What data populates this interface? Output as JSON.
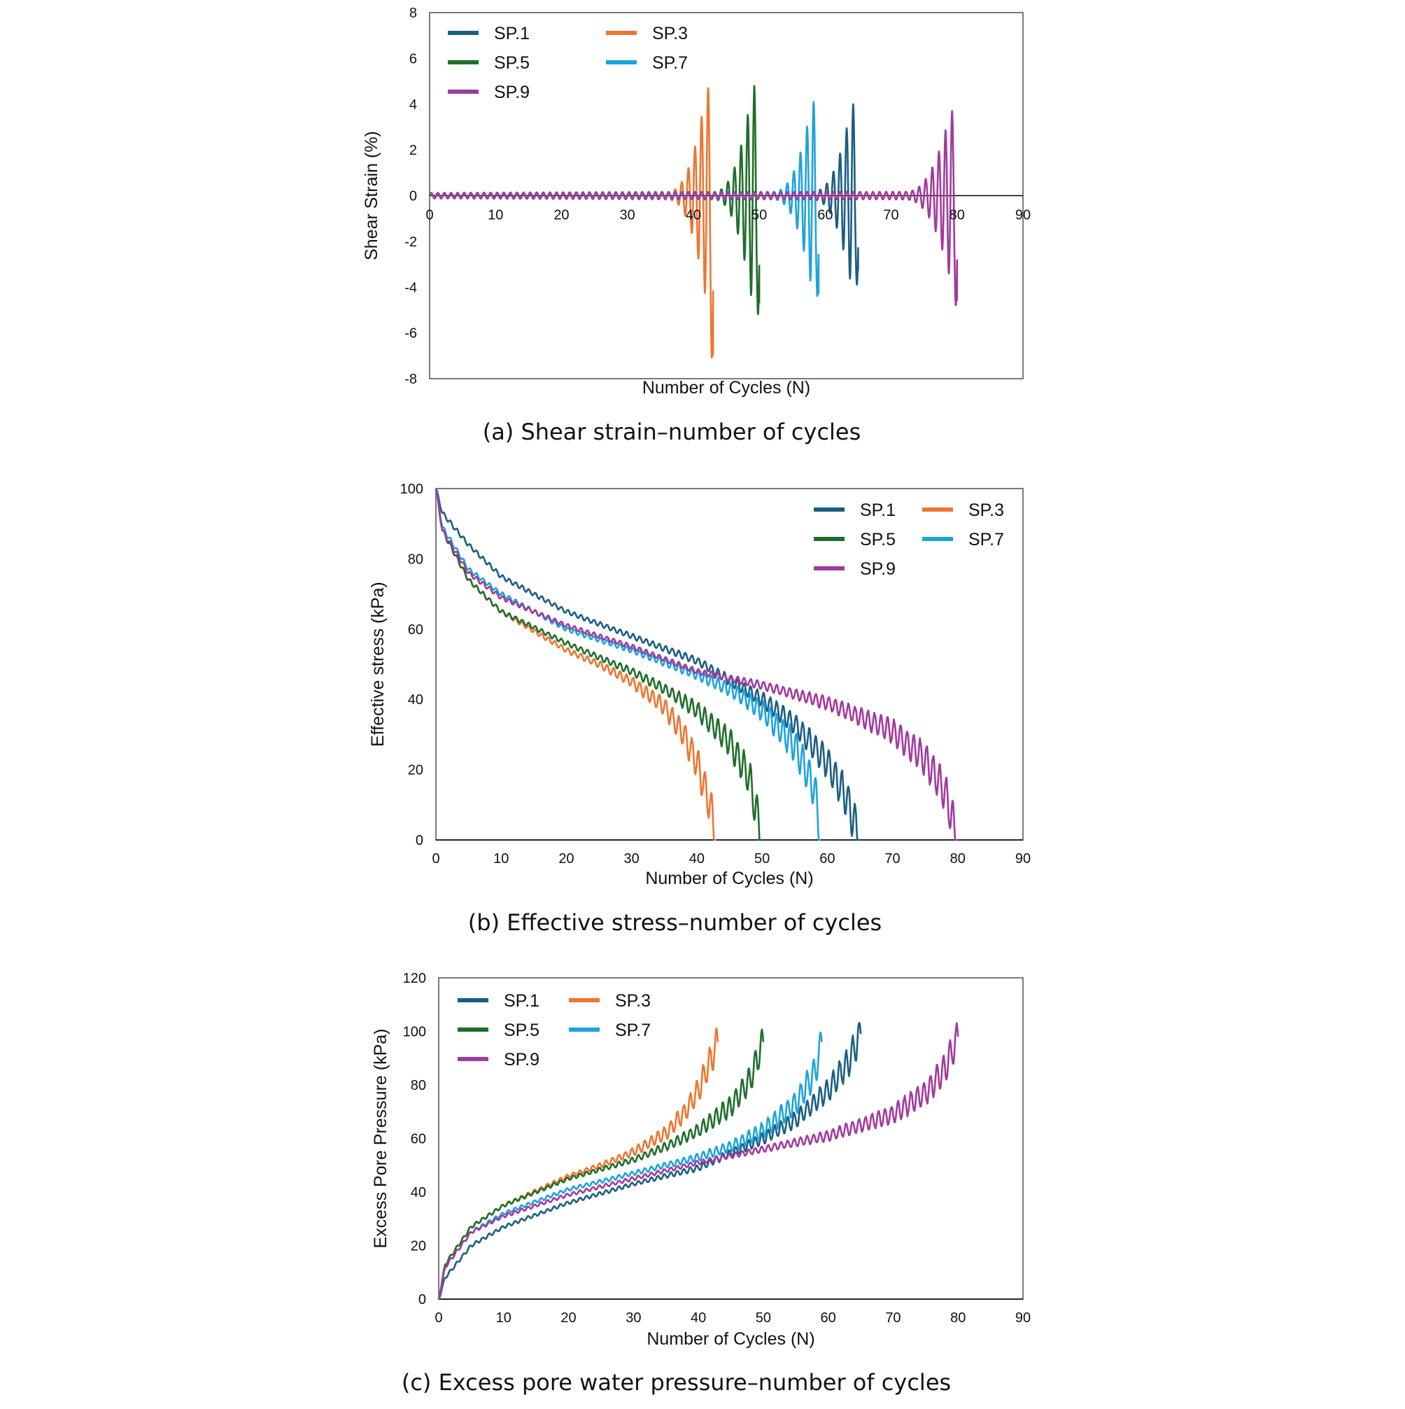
{
  "colors": {
    "SP.1": "#1b5e82",
    "SP.3": "#ed7631",
    "SP.5": "#1f6e2a",
    "SP.7": "#1ea3dc",
    "SP.9": "#a23a9e"
  },
  "chart_data": [
    {
      "id": "a",
      "type": "line",
      "caption": "(a) Shear strain–number of cycles",
      "xlabel": "Number of Cycles (N)",
      "ylabel": "Shear Strain (%)",
      "xlim": [
        0,
        90
      ],
      "ylim": [
        -8,
        8
      ],
      "xticks": [
        0,
        10,
        20,
        30,
        40,
        50,
        60,
        70,
        80,
        90
      ],
      "yticks": [
        8,
        6,
        4,
        2,
        0,
        -2,
        -4,
        -6,
        -8
      ],
      "grid": false,
      "legend_position": "top-left",
      "series": [
        {
          "name": "SP.1",
          "failure_cycle": 65,
          "onset_cycle": 58,
          "peak_pos": 4.0,
          "peak_neg": -3.9,
          "final": -3.3
        },
        {
          "name": "SP.3",
          "failure_cycle": 43,
          "onset_cycle": 36,
          "peak_pos": 4.7,
          "peak_neg": -7.1,
          "final": -7.0
        },
        {
          "name": "SP.5",
          "failure_cycle": 50,
          "onset_cycle": 43,
          "peak_pos": 4.8,
          "peak_neg": -5.2,
          "final": -4.7
        },
        {
          "name": "SP.7",
          "failure_cycle": 59,
          "onset_cycle": 52,
          "peak_pos": 4.1,
          "peak_neg": -4.4,
          "final": -4.3
        },
        {
          "name": "SP.9",
          "failure_cycle": 80,
          "onset_cycle": 72,
          "peak_pos": 3.7,
          "peak_neg": -4.8,
          "final": -4.6
        }
      ]
    },
    {
      "id": "b",
      "type": "line",
      "caption": "(b) Effective stress–number of cycles",
      "xlabel": "Number of Cycles (N)",
      "ylabel": "Effective stress (kPa)",
      "xlim": [
        0,
        90
      ],
      "ylim": [
        0,
        100
      ],
      "xticks": [
        0,
        10,
        20,
        30,
        40,
        50,
        60,
        70,
        80,
        90
      ],
      "yticks": [
        100,
        80,
        60,
        40,
        20,
        0
      ],
      "grid": false,
      "legend_position": "top-right",
      "series": [
        {
          "name": "SP.1",
          "x": [
            0,
            1,
            5,
            10,
            20,
            30,
            40,
            50,
            55,
            60,
            63,
            65
          ],
          "y": [
            100,
            93,
            84,
            75,
            65,
            58,
            51,
            40,
            33,
            22,
            12,
            0
          ]
        },
        {
          "name": "SP.3",
          "x": [
            0,
            1,
            5,
            10,
            20,
            25,
            30,
            35,
            38,
            40,
            42,
            43
          ],
          "y": [
            100,
            88,
            74,
            65,
            54,
            50,
            45,
            38,
            30,
            22,
            10,
            0
          ]
        },
        {
          "name": "SP.5",
          "x": [
            0,
            1,
            5,
            10,
            20,
            30,
            35,
            40,
            45,
            48,
            50
          ],
          "y": [
            100,
            88,
            74,
            65,
            56,
            48,
            43,
            37,
            28,
            18,
            0
          ]
        },
        {
          "name": "SP.7",
          "x": [
            0,
            1,
            5,
            10,
            20,
            30,
            40,
            45,
            50,
            55,
            58,
            59
          ],
          "y": [
            100,
            89,
            77,
            70,
            60,
            54,
            47,
            43,
            37,
            27,
            15,
            0
          ]
        },
        {
          "name": "SP.9",
          "x": [
            0,
            1,
            5,
            10,
            20,
            30,
            40,
            50,
            60,
            70,
            75,
            78,
            80
          ],
          "y": [
            100,
            88,
            76,
            69,
            61,
            55,
            48,
            44,
            39,
            31,
            23,
            14,
            0
          ]
        }
      ]
    },
    {
      "id": "c",
      "type": "line",
      "caption": "(c) Excess pore water pressure–number of cycles",
      "xlabel": "Number of Cycles (N)",
      "ylabel": "Excess Pore Pressure (kPa)",
      "xlim": [
        0,
        90
      ],
      "ylim": [
        0,
        120
      ],
      "xticks": [
        0,
        10,
        20,
        30,
        40,
        50,
        60,
        70,
        80,
        90
      ],
      "yticks": [
        120,
        100,
        80,
        60,
        40,
        20,
        0
      ],
      "grid": false,
      "legend_position": "top-left",
      "series": [
        {
          "name": "SP.1",
          "x": [
            0,
            1,
            5,
            10,
            20,
            30,
            40,
            50,
            55,
            60,
            63,
            65
          ],
          "y": [
            0,
            8,
            20,
            27,
            36,
            43,
            49,
            60,
            67,
            78,
            88,
            99
          ]
        },
        {
          "name": "SP.3",
          "x": [
            0,
            1,
            5,
            10,
            20,
            25,
            30,
            35,
            38,
            40,
            42,
            43
          ],
          "y": [
            0,
            13,
            27,
            35,
            46,
            50,
            55,
            62,
            70,
            78,
            90,
            96
          ]
        },
        {
          "name": "SP.5",
          "x": [
            0,
            1,
            5,
            10,
            20,
            30,
            35,
            40,
            45,
            48,
            50
          ],
          "y": [
            0,
            13,
            27,
            35,
            45,
            52,
            57,
            63,
            72,
            82,
            96
          ]
        },
        {
          "name": "SP.7",
          "x": [
            0,
            1,
            5,
            10,
            20,
            30,
            40,
            45,
            50,
            55,
            58,
            59
          ],
          "y": [
            0,
            12,
            25,
            32,
            41,
            47,
            53,
            57,
            63,
            73,
            85,
            96
          ]
        },
        {
          "name": "SP.9",
          "x": [
            0,
            1,
            5,
            10,
            20,
            30,
            40,
            50,
            60,
            70,
            75,
            78,
            80
          ],
          "y": [
            0,
            12,
            25,
            31,
            39,
            45,
            51,
            56,
            61,
            69,
            77,
            86,
            98
          ]
        }
      ]
    }
  ]
}
